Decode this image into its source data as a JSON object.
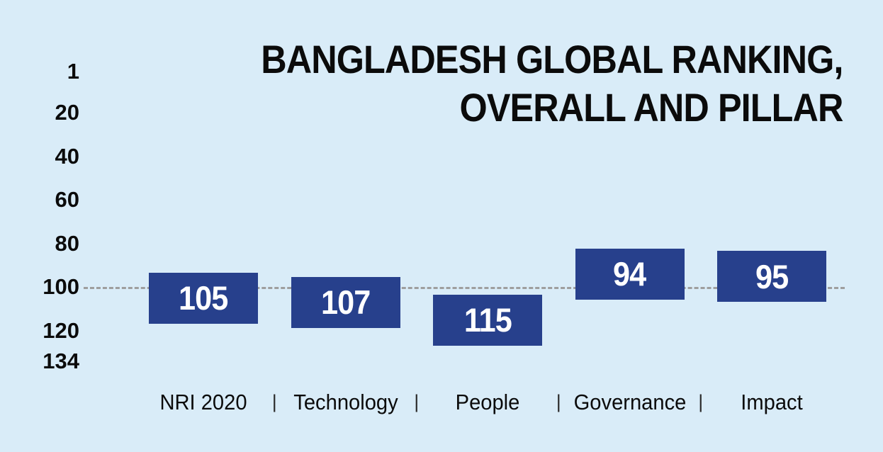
{
  "title": {
    "line1": "BANGLADESH GLOBAL RANKING,",
    "line2": "OVERALL AND PILLAR"
  },
  "chart_data": {
    "type": "bar",
    "title": "BANGLADESH GLOBAL RANKING, OVERALL AND PILLAR",
    "categories": [
      "NRI 2020",
      "Technology",
      "People",
      "Governance",
      "Impact"
    ],
    "values": [
      105,
      107,
      115,
      94,
      95
    ],
    "category_separator": "|",
    "yticks": [
      1,
      20,
      40,
      60,
      80,
      100,
      120,
      134
    ],
    "ylim": [
      1,
      134
    ],
    "y_axis_inverted": true,
    "reference_line": 100,
    "legend": "none",
    "grid": "reference-line-only",
    "colors": {
      "background": "#d9ecf8",
      "bar": "#27408c",
      "value_text": "#ffffff",
      "reference_line": "#9e9e9e",
      "text": "#0b0b0b"
    }
  }
}
